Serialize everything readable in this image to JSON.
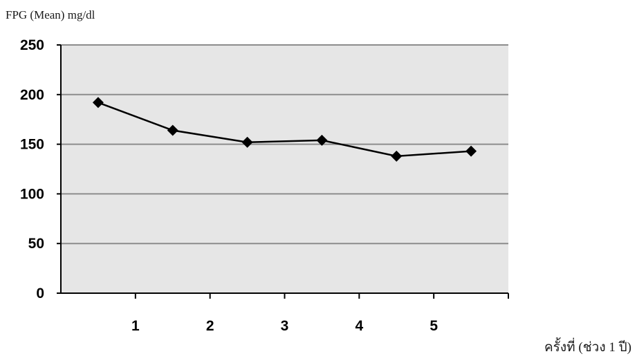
{
  "chart_data": {
    "type": "line",
    "title": "",
    "ylabel": "FPG (Mean) mg/dl",
    "xlabel": "ครั้งที่ (ช่วง 1 ปี)",
    "y_ticks": [
      "0",
      "50",
      "100",
      "150",
      "200",
      "250"
    ],
    "x_ticks": [
      "1",
      "2",
      "3",
      "4",
      "5"
    ],
    "ylim": [
      0,
      250
    ],
    "grid": true,
    "legend": "none",
    "series": [
      {
        "values": [
          192,
          164,
          152,
          154,
          138,
          143
        ]
      }
    ],
    "colors": {
      "plot_background": "#e6e6e6",
      "gridline": "#8c8c8c",
      "line": "#000000",
      "marker": "#000000"
    },
    "marker": "diamond"
  }
}
